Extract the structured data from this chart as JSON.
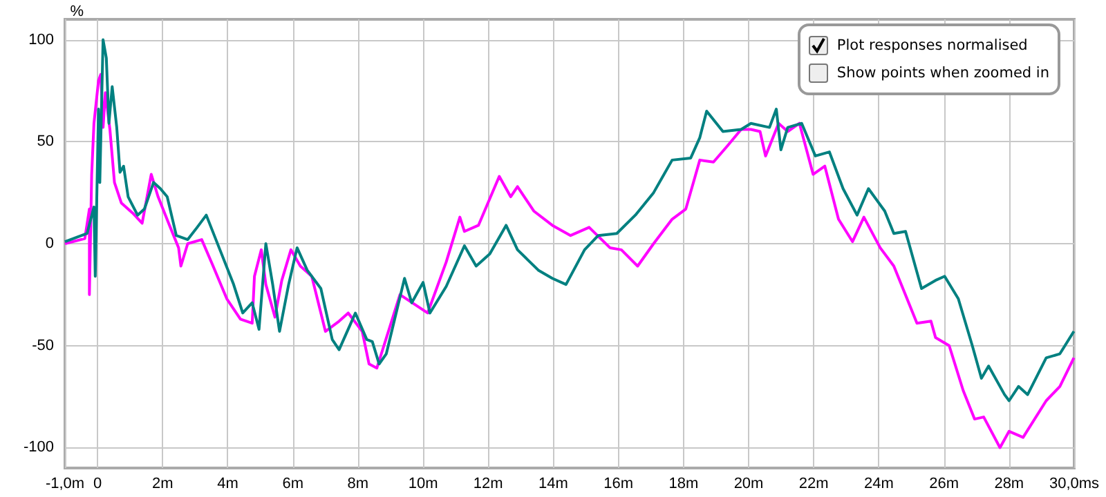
{
  "chart_data": {
    "type": "line",
    "ylabel": "%",
    "xlim": [
      -1,
      30
    ],
    "ylim": [
      -110,
      110
    ],
    "xticks": [
      {
        "value": -1,
        "label": "-1,0m"
      },
      {
        "value": 0,
        "label": "0"
      },
      {
        "value": 2,
        "label": "2m"
      },
      {
        "value": 4,
        "label": "4m"
      },
      {
        "value": 6,
        "label": "6m"
      },
      {
        "value": 8,
        "label": "8m"
      },
      {
        "value": 10,
        "label": "10m"
      },
      {
        "value": 12,
        "label": "12m"
      },
      {
        "value": 14,
        "label": "14m"
      },
      {
        "value": 16,
        "label": "16m"
      },
      {
        "value": 18,
        "label": "18m"
      },
      {
        "value": 20,
        "label": "20m"
      },
      {
        "value": 22,
        "label": "22m"
      },
      {
        "value": 24,
        "label": "24m"
      },
      {
        "value": 26,
        "label": "26m"
      },
      {
        "value": 28,
        "label": "28m"
      },
      {
        "value": 30,
        "label": "30,0ms"
      }
    ],
    "yticks": [
      -100,
      -50,
      0,
      50,
      100
    ],
    "grid": true,
    "marker": "none",
    "line_style": "solid",
    "annotations": [
      "Plot responses normalised",
      "Show points when zoomed in"
    ],
    "series": [
      {
        "color": "#ff00ff",
        "x": [
          -1,
          -0.39,
          -0.25,
          -0.25,
          -0.18,
          -0.11,
          0.03,
          0.1,
          0.17,
          0.24,
          0.38,
          0.52,
          0.73,
          1.08,
          1.37,
          1.65,
          1.86,
          2.21,
          2.49,
          2.56,
          2.77,
          3.2,
          3.55,
          3.97,
          4.39,
          4.75,
          4.82,
          5.03,
          5.17,
          5.45,
          5.66,
          5.94,
          6.23,
          6.58,
          7.0,
          7.42,
          7.7,
          8.13,
          8.34,
          8.58,
          9.29,
          10.14,
          10.71,
          11.13,
          11.27,
          11.7,
          12.34,
          12.69,
          12.9,
          13.4,
          13.97,
          14.53,
          15.1,
          15.74,
          16.09,
          16.59,
          17.08,
          17.65,
          18.07,
          18.5,
          18.92,
          19.35,
          19.77,
          20.07,
          20.35,
          20.52,
          20.92,
          21.2,
          21.56,
          21.98,
          22.34,
          22.76,
          23.19,
          23.54,
          24.04,
          24.46,
          25.17,
          25.6,
          25.74,
          26.16,
          26.59,
          26.94,
          27.22,
          27.72,
          28.0,
          28.43,
          29.14,
          29.56,
          29.99
        ],
        "values": [
          0,
          2.5,
          17,
          -25,
          34,
          59,
          80,
          83,
          57,
          74,
          56,
          30,
          20,
          15,
          10,
          34,
          23,
          9,
          -2,
          -11,
          0,
          2,
          -11,
          -27,
          -37,
          -39,
          -16,
          -3,
          -20,
          -36,
          -18,
          -3,
          -11,
          -16,
          -43,
          -38,
          -34,
          -43,
          -59,
          -61,
          -25,
          -34,
          -9,
          13,
          6,
          9,
          33,
          23,
          28,
          16,
          9,
          4,
          8,
          -2,
          -3,
          -11,
          0,
          12,
          17,
          41,
          40,
          48,
          56,
          56,
          55,
          43,
          59,
          55,
          59,
          34,
          38,
          12,
          1,
          13,
          -2,
          -11,
          -39,
          -38,
          -46,
          -50,
          -72,
          -86,
          -85,
          -100,
          -92,
          -95,
          -77,
          -70,
          -56
        ]
      },
      {
        "color": "#008080",
        "x": [
          -1,
          -0.32,
          -0.11,
          -0.07,
          0.03,
          0.07,
          0.17,
          0.27,
          0.35,
          0.45,
          0.59,
          0.69,
          0.8,
          0.94,
          1.23,
          1.44,
          1.72,
          1.93,
          2.14,
          2.42,
          2.77,
          3.06,
          3.34,
          3.76,
          4.18,
          4.46,
          4.75,
          4.96,
          5.17,
          5.38,
          5.59,
          5.87,
          6.13,
          6.44,
          6.86,
          7.21,
          7.42,
          7.92,
          8.27,
          8.44,
          8.65,
          8.87,
          9.43,
          9.65,
          10.0,
          10.21,
          10.71,
          11.27,
          11.63,
          12.05,
          12.55,
          12.9,
          13.54,
          13.97,
          14.39,
          14.96,
          15.38,
          15.95,
          16.52,
          17.08,
          17.65,
          18.22,
          18.5,
          18.71,
          19.21,
          19.77,
          20.07,
          20.64,
          20.85,
          20.99,
          21.2,
          21.63,
          22.05,
          22.48,
          22.9,
          23.33,
          23.68,
          24.18,
          24.46,
          24.82,
          25.31,
          25.74,
          26.02,
          26.44,
          26.87,
          27.15,
          27.37,
          27.86,
          28.0,
          28.29,
          28.57,
          29.14,
          29.56,
          29.99
        ],
        "values": [
          1,
          5,
          18,
          -16,
          66,
          30,
          100,
          91,
          59,
          77,
          57,
          35,
          38,
          23,
          14,
          17,
          30,
          27,
          23,
          4,
          2,
          8,
          14,
          -3,
          -20,
          -34,
          -29,
          -42,
          0,
          -20,
          -43,
          -20,
          -2,
          -13,
          -22,
          -47,
          -52,
          -34,
          -47,
          -48,
          -59,
          -54,
          -17,
          -29,
          -19,
          -34,
          -21,
          -1,
          -11,
          -5,
          9,
          -3,
          -13,
          -17,
          -20,
          -3,
          4,
          5,
          14,
          25,
          41,
          42,
          52,
          65,
          55,
          56,
          59,
          57,
          66,
          46,
          57,
          59,
          43,
          45,
          27,
          14,
          27,
          16,
          5,
          6,
          -22,
          -18,
          -16,
          -27,
          -50,
          -66,
          -60,
          -74,
          -77,
          -70,
          -74,
          -56,
          -54,
          -43
        ]
      }
    ]
  }
}
